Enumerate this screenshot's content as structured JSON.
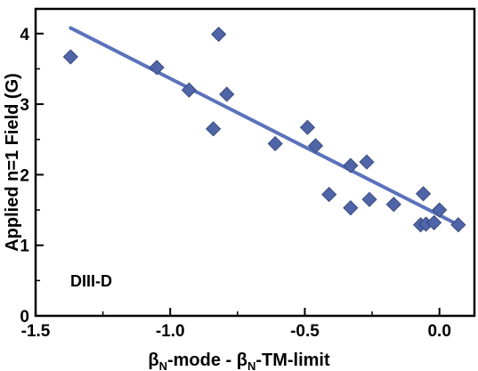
{
  "chart_data": {
    "type": "scatter",
    "title": "",
    "xlabel": {
      "parts": [
        {
          "text": "β",
          "sub": false
        },
        {
          "text": "N",
          "sub": true
        },
        {
          "text": "-mode - β",
          "sub": false
        },
        {
          "text": "N",
          "sub": true
        },
        {
          "text": "-TM-limit",
          "sub": false
        }
      ]
    },
    "ylabel": "Applied n=1 Field (G)",
    "xlim": [
      -1.5,
      0.13
    ],
    "ylim": [
      0,
      4.35
    ],
    "x_ticks": [
      -1.5,
      -1.0,
      -0.5,
      0.0
    ],
    "x_tick_labels": [
      "-1.5",
      "-1.0",
      "-0.5",
      "0.0"
    ],
    "y_ticks": [
      0,
      1,
      2,
      3,
      4
    ],
    "y_tick_labels": [
      "0",
      "1",
      "2",
      "3",
      "4"
    ],
    "annotation": "DIII-D",
    "marker_color": "#4f65a8",
    "line_color": "#5b72bb",
    "series": [
      {
        "marker": "diamond",
        "points": [
          {
            "x": -1.37,
            "y": 3.67
          },
          {
            "x": -1.05,
            "y": 3.52
          },
          {
            "x": -0.93,
            "y": 3.2
          },
          {
            "x": -0.82,
            "y": 3.99
          },
          {
            "x": -0.79,
            "y": 3.14
          },
          {
            "x": -0.84,
            "y": 2.65
          },
          {
            "x": -0.61,
            "y": 2.44
          },
          {
            "x": -0.49,
            "y": 2.67
          },
          {
            "x": -0.46,
            "y": 2.41
          },
          {
            "x": -0.41,
            "y": 1.72
          },
          {
            "x": -0.33,
            "y": 2.13
          },
          {
            "x": -0.27,
            "y": 2.18
          },
          {
            "x": -0.33,
            "y": 1.53
          },
          {
            "x": -0.26,
            "y": 1.65
          },
          {
            "x": -0.17,
            "y": 1.58
          },
          {
            "x": -0.06,
            "y": 1.73
          },
          {
            "x": -0.07,
            "y": 1.29
          },
          {
            "x": -0.05,
            "y": 1.3
          },
          {
            "x": -0.02,
            "y": 1.32
          },
          {
            "x": 0.0,
            "y": 1.5
          },
          {
            "x": 0.07,
            "y": 1.29
          }
        ]
      }
    ],
    "fit_line": {
      "x": [
        -1.37,
        0.08
      ],
      "y": [
        4.08,
        1.27
      ]
    }
  }
}
